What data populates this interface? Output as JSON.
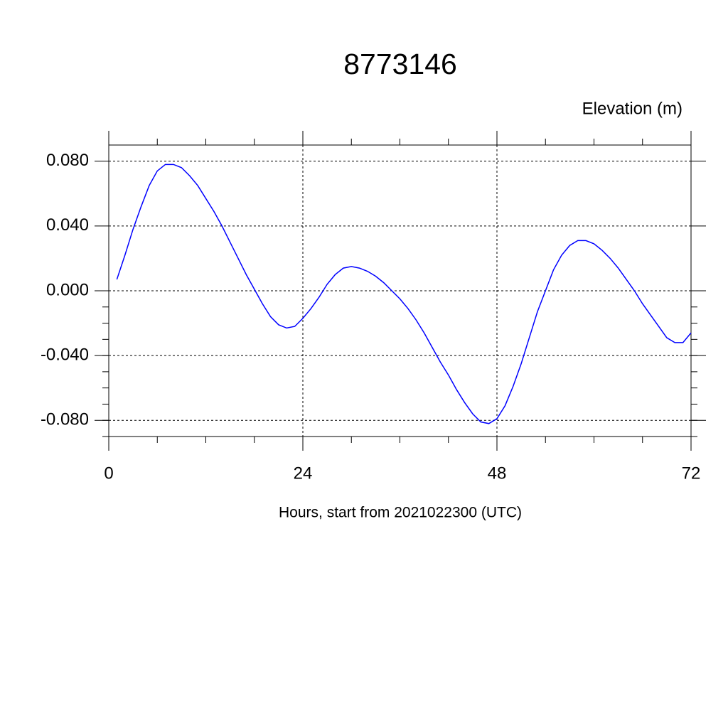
{
  "chart_data": {
    "type": "line",
    "title": "8773146",
    "y_label": "Elevation (m)",
    "x_label": "Hours, start from 2021022300 (UTC)",
    "x": [
      1,
      2,
      3,
      4,
      5,
      6,
      7,
      8,
      9,
      10,
      11,
      12,
      13,
      14,
      15,
      16,
      17,
      18,
      19,
      20,
      21,
      22,
      23,
      24,
      25,
      26,
      27,
      28,
      29,
      30,
      31,
      32,
      33,
      34,
      35,
      36,
      37,
      38,
      39,
      40,
      41,
      42,
      43,
      44,
      45,
      46,
      47,
      48,
      49,
      50,
      51,
      52,
      53,
      54,
      55,
      56,
      57,
      58,
      59,
      60,
      61,
      62,
      63,
      64,
      65,
      66,
      67,
      68,
      69,
      70,
      71,
      72
    ],
    "series": [
      {
        "name": "Elevation",
        "color": "#0000ff",
        "values": [
          0.007,
          0.022,
          0.038,
          0.052,
          0.065,
          0.074,
          0.078,
          0.078,
          0.076,
          0.071,
          0.065,
          0.057,
          0.049,
          0.04,
          0.03,
          0.02,
          0.01,
          0.001,
          -0.008,
          -0.016,
          -0.021,
          -0.023,
          -0.022,
          -0.017,
          -0.011,
          -0.004,
          0.004,
          0.01,
          0.014,
          0.015,
          0.014,
          0.012,
          0.009,
          0.005,
          0.0,
          -0.005,
          -0.011,
          -0.018,
          -0.026,
          -0.035,
          -0.044,
          -0.052,
          -0.061,
          -0.069,
          -0.076,
          -0.081,
          -0.082,
          -0.079,
          -0.071,
          -0.059,
          -0.045,
          -0.029,
          -0.013,
          0.0,
          0.013,
          0.022,
          0.028,
          0.031,
          0.031,
          0.029,
          0.025,
          0.02,
          0.014,
          0.007,
          0.0,
          -0.008,
          -0.015,
          -0.022,
          -0.029,
          -0.032,
          -0.032,
          -0.026
        ]
      }
    ],
    "xlim": [
      0,
      72
    ],
    "xticks": [
      0,
      24,
      48,
      72
    ],
    "ylim": [
      -0.09,
      0.09
    ],
    "yticks": [
      {
        "value": -0.08,
        "label": "-0.080"
      },
      {
        "value": -0.04,
        "label": "-0.040"
      },
      {
        "value": 0,
        "label": "0.000"
      },
      {
        "value": 0.04,
        "label": "0.040"
      },
      {
        "value": 0.08,
        "label": "0.080"
      }
    ],
    "grid": true
  }
}
